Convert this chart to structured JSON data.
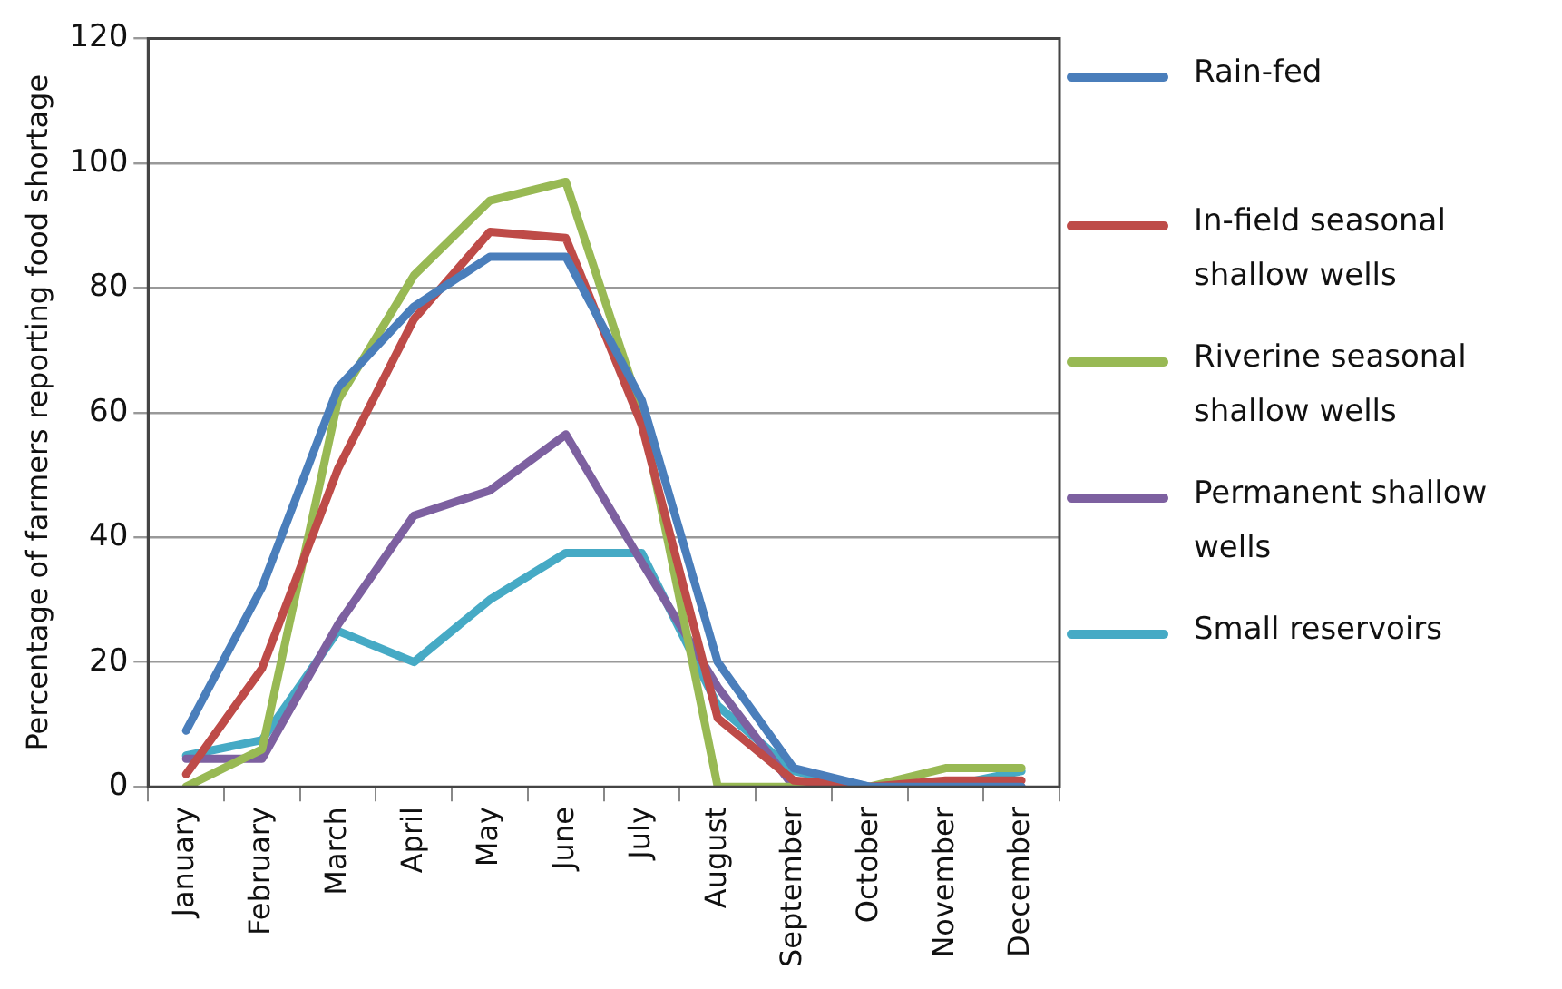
{
  "chart_data": {
    "type": "line",
    "ylabel": "Percentage of farmers reporting food shortage",
    "categories": [
      "January",
      "February",
      "March",
      "April",
      "May",
      "June",
      "July",
      "August",
      "September",
      "October",
      "November",
      "December"
    ],
    "series": [
      {
        "name": "Rain-fed",
        "color": "#4a7ebb",
        "values": [
          9,
          32,
          64,
          77,
          85,
          85,
          62,
          20,
          3,
          0,
          0,
          0
        ]
      },
      {
        "name": "In-field seasonal shallow wells",
        "color": "#be4b48",
        "values": [
          2,
          19,
          51,
          75,
          89,
          88,
          58,
          11,
          1,
          0,
          1,
          1
        ]
      },
      {
        "name": "Riverine seasonal shallow wells",
        "color": "#98b954",
        "values": [
          0,
          6,
          62,
          82,
          94,
          97,
          60,
          0,
          0,
          0,
          3,
          3
        ]
      },
      {
        "name": "Permanent shallow wells",
        "color": "#7d60a0",
        "values": [
          4.5,
          4.5,
          26,
          43.5,
          47.5,
          56.5,
          36,
          16,
          0,
          0,
          0,
          0
        ]
      },
      {
        "name": "Small reservoirs",
        "color": "#46aac5",
        "values": [
          5,
          7.5,
          25,
          20,
          30,
          37.5,
          37.5,
          13,
          2.5,
          0,
          0,
          2.5
        ]
      }
    ],
    "ylim": [
      0,
      120
    ],
    "yticks": [
      0,
      20,
      40,
      60,
      80,
      100,
      120
    ],
    "grid": "y",
    "legend": "right",
    "marker": "none",
    "line_style": "solid"
  }
}
